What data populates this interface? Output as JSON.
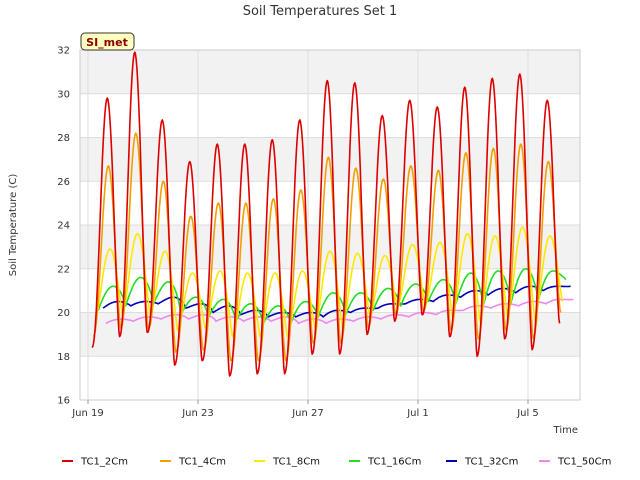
{
  "chart_data": {
    "type": "line",
    "title": "Soil Temperatures Set 1",
    "xlabel": "Time",
    "ylabel": "Soil Temperature (C)",
    "badge": "SI_met",
    "ylim": [
      16,
      32
    ],
    "yticks": [
      16,
      18,
      20,
      22,
      24,
      26,
      28,
      30,
      32
    ],
    "xlim_days": [
      0,
      18
    ],
    "xticks": [
      {
        "day": 0,
        "label": "Jun 19"
      },
      {
        "day": 4,
        "label": "Jun 23"
      },
      {
        "day": 8,
        "label": "Jun 27"
      },
      {
        "day": 12,
        "label": "Jul 1"
      },
      {
        "day": 16,
        "label": "Jul 5"
      }
    ],
    "grid": true,
    "legend_position": "bottom",
    "series": [
      {
        "name": "TC1_2Cm",
        "color": "#dd0000",
        "daily_max": [
          29.8,
          31.9,
          28.8,
          26.9,
          27.7,
          27.7,
          27.9,
          28.8,
          30.6,
          30.5,
          29.0,
          29.7,
          29.4,
          30.3,
          30.7,
          30.9,
          29.7
        ],
        "daily_min": [
          18.4,
          18.9,
          19.1,
          17.6,
          17.8,
          17.1,
          17.2,
          17.2,
          18.1,
          18.1,
          19.0,
          19.6,
          19.9,
          18.9,
          18.0,
          18.8,
          18.3
        ],
        "end": 19.5
      },
      {
        "name": "TC1_4Cm",
        "color": "#f0a000",
        "daily_max": [
          26.7,
          28.2,
          26.0,
          24.4,
          25.0,
          25.0,
          25.2,
          25.6,
          27.1,
          26.6,
          26.1,
          26.7,
          26.5,
          27.3,
          27.5,
          27.7,
          26.9
        ],
        "daily_min": [
          18.9,
          19.3,
          19.3,
          18.2,
          18.3,
          17.8,
          17.8,
          17.8,
          18.6,
          18.6,
          19.3,
          19.9,
          20.1,
          19.2,
          18.8,
          19.2,
          18.8
        ],
        "end": 20.0
      },
      {
        "name": "TC1_8Cm",
        "color": "#ffe800",
        "daily_max": [
          22.9,
          23.6,
          22.8,
          21.8,
          21.9,
          21.8,
          21.8,
          21.9,
          22.8,
          22.7,
          22.6,
          23.1,
          23.2,
          23.6,
          23.5,
          23.9,
          23.5
        ],
        "daily_min": [
          19.6,
          19.9,
          19.9,
          19.2,
          19.3,
          18.9,
          18.9,
          18.9,
          19.3,
          19.3,
          19.8,
          20.2,
          20.3,
          19.8,
          19.6,
          19.8,
          19.6
        ],
        "end": 20.5
      },
      {
        "name": "TC1_16Cm",
        "color": "#22dd22",
        "daily_max": [
          21.2,
          21.6,
          21.4,
          20.7,
          20.6,
          20.4,
          20.3,
          20.5,
          20.9,
          20.9,
          21.1,
          21.3,
          21.5,
          21.8,
          21.9,
          22.0,
          21.9
        ],
        "daily_min": [
          20.1,
          20.3,
          20.4,
          19.9,
          19.8,
          19.6,
          19.5,
          19.5,
          19.8,
          19.9,
          20.1,
          20.3,
          20.5,
          20.4,
          20.3,
          20.4,
          20.5
        ],
        "end": 21.5
      },
      {
        "name": "TC1_32Cm",
        "color": "#0000bb",
        "daily_max": [
          20.5,
          20.5,
          20.7,
          20.4,
          20.3,
          20.1,
          20.0,
          20.0,
          20.1,
          20.2,
          20.4,
          20.6,
          20.8,
          21.0,
          21.1,
          21.2,
          21.2
        ],
        "daily_min": [
          20.2,
          20.3,
          20.4,
          20.2,
          20.0,
          19.9,
          19.8,
          19.8,
          19.8,
          20.0,
          20.2,
          20.4,
          20.5,
          20.7,
          20.8,
          20.9,
          21.0
        ],
        "end": 21.2
      },
      {
        "name": "TC1_50Cm",
        "color": "#ee88ee",
        "daily_max": [
          19.7,
          19.8,
          19.9,
          19.9,
          19.8,
          19.8,
          19.8,
          19.7,
          19.7,
          19.8,
          19.9,
          20.0,
          20.1,
          20.3,
          20.4,
          20.5,
          20.6
        ],
        "daily_min": [
          19.5,
          19.6,
          19.7,
          19.7,
          19.6,
          19.6,
          19.6,
          19.5,
          19.5,
          19.6,
          19.7,
          19.8,
          19.9,
          20.1,
          20.2,
          20.3,
          20.4
        ],
        "end": 20.6
      }
    ]
  }
}
